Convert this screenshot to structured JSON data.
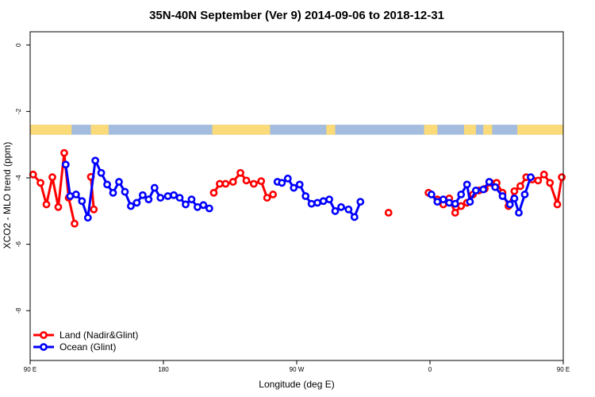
{
  "chart_data": {
    "type": "line",
    "title": "35N-40N September (Ver 9)   2014-09-06 to 2018-12-31",
    "xlabel": "Longitude (deg E)",
    "ylabel": "XCO2 - MLO trend (ppm)",
    "xlim": [
      90,
      450
    ],
    "ylim": [
      -9.5,
      0.4
    ],
    "x_ticks": [
      {
        "value": 90,
        "label": "90 E"
      },
      {
        "value": 180,
        "label": "180"
      },
      {
        "value": 270,
        "label": "90 W"
      },
      {
        "value": 360,
        "label": "0"
      },
      {
        "value": 450,
        "label": "90 E"
      },
      {
        "value": 540,
        "label": "180"
      }
    ],
    "y_ticks": [
      {
        "value": 0,
        "label": "0"
      },
      {
        "value": -2,
        "label": "-2"
      },
      {
        "value": -4,
        "label": "-4"
      },
      {
        "value": -6,
        "label": "-6"
      },
      {
        "value": -8,
        "label": "-8"
      }
    ],
    "land_mask_band": {
      "y_range": [
        -2.7,
        -2.4
      ],
      "ocean_color": "#a4bcdd",
      "land_color": "#fbda7a",
      "land_segments": [
        [
          90,
          118
        ],
        [
          131,
          143
        ],
        [
          213,
          252
        ],
        [
          290,
          296
        ],
        [
          356,
          365
        ],
        [
          383,
          391
        ],
        [
          396,
          402
        ],
        [
          419,
          480
        ],
        [
          483,
          490
        ],
        [
          497,
          506
        ]
      ]
    },
    "legend_position": "bottom-left",
    "series": [
      {
        "name": "Land (Nadir&Glint)",
        "color": "#ff0000",
        "segments": [
          [
            [
              92,
              -3.9
            ],
            [
              97,
              -4.15
            ],
            [
              101,
              -4.8
            ],
            [
              105,
              -3.98
            ],
            [
              109,
              -4.88
            ],
            [
              113,
              -3.25
            ],
            [
              116,
              -4.6
            ],
            [
              120,
              -5.38
            ]
          ],
          [
            [
              131,
              -3.97
            ],
            [
              133,
              -4.95
            ]
          ],
          [
            [
              214,
              -4.45
            ],
            [
              218,
              -4.18
            ],
            [
              222,
              -4.18
            ],
            [
              227,
              -4.12
            ],
            [
              232,
              -3.85
            ],
            [
              236,
              -4.08
            ],
            [
              241,
              -4.18
            ],
            [
              246,
              -4.1
            ],
            [
              250,
              -4.6
            ],
            [
              254,
              -4.5
            ]
          ],
          [
            [
              332,
              -5.05
            ]
          ],
          [
            [
              359,
              -4.45
            ],
            [
              365,
              -4.65
            ],
            [
              369,
              -4.8
            ],
            [
              373,
              -4.62
            ],
            [
              377,
              -5.05
            ],
            [
              381,
              -4.85
            ],
            [
              385,
              -4.75
            ],
            [
              389,
              -4.5
            ],
            [
              393,
              -4.38
            ],
            [
              397,
              -4.33
            ],
            [
              401,
              -4.15
            ],
            [
              405,
              -4.15
            ],
            [
              409,
              -4.45
            ],
            [
              413,
              -4.85
            ],
            [
              417,
              -4.4
            ],
            [
              421,
              -4.25
            ],
            [
              425,
              -3.98
            ],
            [
              429,
              -4.05
            ],
            [
              433,
              -4.08
            ],
            [
              437,
              -3.9
            ],
            [
              441,
              -4.15
            ],
            [
              446,
              -4.8
            ],
            [
              449,
              -3.98
            ],
            [
              453,
              -4.88
            ],
            [
              457,
              -3.25
            ],
            [
              460,
              -4.6
            ],
            [
              464,
              -5.38
            ]
          ],
          [
            [
              475,
              -3.97
            ],
            [
              477,
              -4.95
            ]
          ]
        ]
      },
      {
        "name": "Ocean (Glint)",
        "color": "#0000ff",
        "segments": [
          [
            [
              114,
              -3.6
            ],
            [
              117,
              -4.55
            ],
            [
              121,
              -4.5
            ],
            [
              125,
              -4.7
            ],
            [
              129,
              -5.2
            ],
            [
              134,
              -3.48
            ],
            [
              138,
              -3.85
            ],
            [
              142,
              -4.2
            ],
            [
              146,
              -4.45
            ],
            [
              150,
              -4.12
            ],
            [
              154,
              -4.42
            ],
            [
              158,
              -4.85
            ],
            [
              162,
              -4.75
            ],
            [
              166,
              -4.52
            ],
            [
              170,
              -4.65
            ],
            [
              174,
              -4.3
            ],
            [
              178,
              -4.6
            ],
            [
              183,
              -4.55
            ],
            [
              187,
              -4.52
            ],
            [
              191,
              -4.6
            ],
            [
              195,
              -4.8
            ],
            [
              199,
              -4.65
            ],
            [
              203,
              -4.88
            ],
            [
              207,
              -4.82
            ],
            [
              211,
              -4.92
            ]
          ],
          [
            [
              257,
              -4.12
            ],
            [
              260,
              -4.15
            ],
            [
              264,
              -4.02
            ],
            [
              268,
              -4.3
            ],
            [
              272,
              -4.2
            ],
            [
              276,
              -4.55
            ],
            [
              280,
              -4.78
            ],
            [
              284,
              -4.75
            ],
            [
              288,
              -4.7
            ],
            [
              292,
              -4.65
            ],
            [
              296,
              -5.0
            ],
            [
              300,
              -4.88
            ],
            [
              305,
              -4.95
            ],
            [
              309,
              -5.18
            ],
            [
              313,
              -4.72
            ]
          ],
          [
            [
              361,
              -4.5
            ],
            [
              365,
              -4.72
            ],
            [
              369,
              -4.65
            ],
            [
              373,
              -4.75
            ],
            [
              377,
              -4.78
            ],
            [
              381,
              -4.5
            ],
            [
              385,
              -4.2
            ],
            [
              387,
              -4.72
            ],
            [
              391,
              -4.38
            ],
            [
              396,
              -4.35
            ],
            [
              400,
              -4.12
            ],
            [
              404,
              -4.28
            ],
            [
              409,
              -4.55
            ],
            [
              414,
              -4.8
            ],
            [
              417,
              -4.62
            ],
            [
              420,
              -5.05
            ],
            [
              424,
              -4.5
            ],
            [
              428,
              -3.98
            ]
          ]
        ]
      }
    ],
    "x_clip": 450,
    "extra_ocean": [
      [
        [
          458,
          -3.6
        ],
        [
          461,
          -4.55
        ],
        [
          465,
          -4.5
        ],
        [
          469,
          -4.7
        ],
        [
          473,
          -5.2
        ],
        [
          478,
          -3.48
        ],
        [
          482,
          -3.85
        ],
        [
          486,
          -4.2
        ],
        [
          490,
          -4.45
        ],
        [
          494,
          -4.12
        ],
        [
          498,
          -4.42
        ],
        [
          502,
          -4.85
        ],
        [
          506,
          -4.75
        ]
      ]
    ]
  }
}
